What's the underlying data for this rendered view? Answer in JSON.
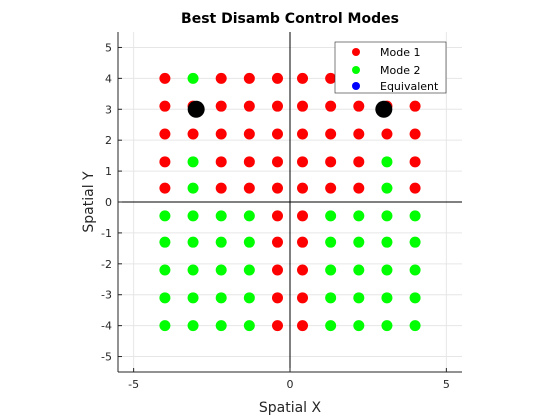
{
  "chart_data": {
    "type": "scatter",
    "title": "Best Disamb Control Modes",
    "xlabel": "Spatial X",
    "ylabel": "Spatial Y",
    "xlim": [
      -5.5,
      5.5
    ],
    "ylim": [
      -5.5,
      5.5
    ],
    "xticks": [
      -5,
      0,
      5
    ],
    "yticks": [
      -5,
      -4,
      -3,
      -2,
      -1,
      0,
      1,
      2,
      3,
      4,
      5
    ],
    "grid": true,
    "grid_x": [
      -5,
      0,
      5
    ],
    "grid_y": [
      -5,
      -4,
      -3,
      -2,
      -1,
      0,
      1,
      2,
      3,
      4,
      5
    ],
    "legend_position": "top-right",
    "x_values": [
      -4.0,
      -3.1,
      -2.2,
      -1.3,
      -0.4,
      0.4,
      1.3,
      2.2,
      3.1,
      4.0
    ],
    "y_values": [
      4.0,
      3.1,
      2.2,
      1.3,
      0.45,
      -0.45,
      -1.3,
      -2.2,
      -3.1,
      -4.0
    ],
    "grid_modes": [
      [
        1,
        2,
        1,
        1,
        1,
        1,
        1,
        1,
        1,
        1
      ],
      [
        1,
        1,
        1,
        1,
        1,
        1,
        1,
        1,
        1,
        1
      ],
      [
        1,
        1,
        1,
        1,
        1,
        1,
        1,
        1,
        1,
        1
      ],
      [
        1,
        2,
        1,
        1,
        1,
        1,
        1,
        1,
        2,
        1
      ],
      [
        1,
        2,
        1,
        1,
        1,
        1,
        1,
        1,
        2,
        1
      ],
      [
        2,
        2,
        2,
        2,
        1,
        1,
        2,
        2,
        2,
        2
      ],
      [
        2,
        2,
        2,
        2,
        1,
        1,
        2,
        2,
        2,
        2
      ],
      [
        2,
        2,
        2,
        2,
        1,
        1,
        2,
        2,
        2,
        2
      ],
      [
        2,
        2,
        2,
        2,
        1,
        1,
        2,
        2,
        2,
        2
      ],
      [
        2,
        2,
        2,
        2,
        1,
        1,
        2,
        2,
        2,
        2
      ]
    ],
    "series": [
      {
        "name": "Mode 1",
        "color": "#ff0000"
      },
      {
        "name": "Mode 2",
        "color": "#00ff00"
      },
      {
        "name": "Equivalent",
        "color": "#0000ff"
      }
    ],
    "highlight_points": [
      {
        "x": -3,
        "y": 3,
        "color": "#000000"
      },
      {
        "x": 3,
        "y": 3,
        "color": "#000000"
      }
    ]
  }
}
